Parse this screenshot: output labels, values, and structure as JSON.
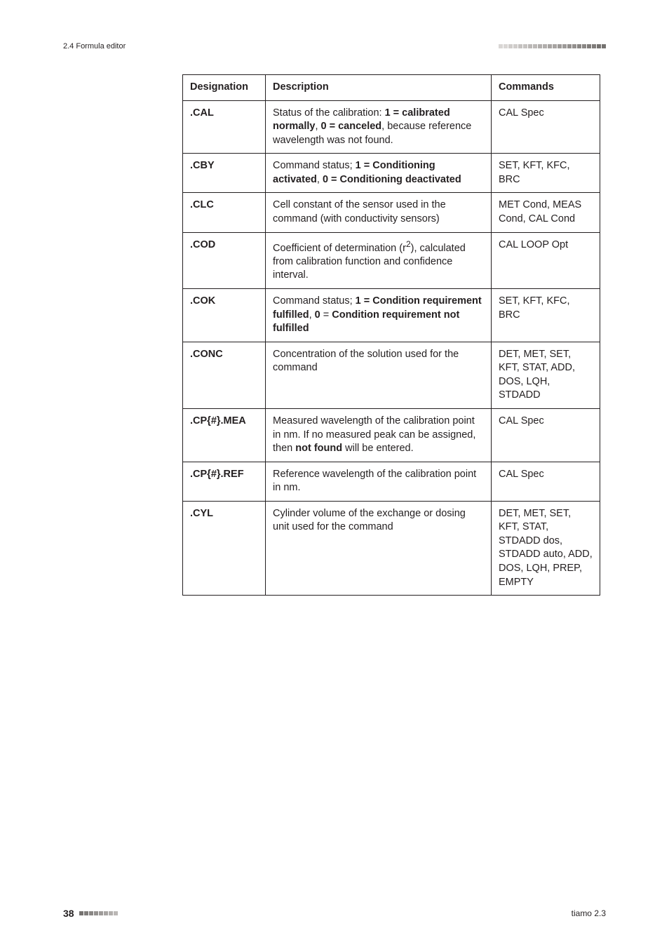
{
  "header": {
    "left": "2.4 Formula editor"
  },
  "table": {
    "headers": [
      "Designation",
      "Description",
      "Commands"
    ],
    "rows": [
      {
        "designation": ".CAL",
        "description_parts": [
          {
            "t": "Status of the calibration: ",
            "b": false
          },
          {
            "t": "1 = calibrated normally",
            "b": true
          },
          {
            "t": ", ",
            "b": false
          },
          {
            "t": "0 = canceled",
            "b": true
          },
          {
            "t": ", because reference wavelength was not found.",
            "b": false
          }
        ],
        "commands": "CAL Spec"
      },
      {
        "designation": ".CBY",
        "description_parts": [
          {
            "t": "Command status; ",
            "b": false
          },
          {
            "t": "1 = Conditioning activated",
            "b": true
          },
          {
            "t": ", ",
            "b": false
          },
          {
            "t": "0 = Conditioning deactivated",
            "b": true
          }
        ],
        "commands": "SET, KFT, KFC, BRC"
      },
      {
        "designation": ".CLC",
        "description_parts": [
          {
            "t": "Cell constant of the sensor used in the command (with conductivity sensors)",
            "b": false
          }
        ],
        "commands": "MET Cond, MEAS Cond, CAL Cond"
      },
      {
        "designation": ".COD",
        "description_parts": [
          {
            "t": "Coefficient of determination (r"
          },
          {
            "t": "2",
            "sup": true
          },
          {
            "t": "), calculated from calibration function and confidence interval."
          }
        ],
        "commands": "CAL LOOP Opt"
      },
      {
        "designation": ".COK",
        "description_parts": [
          {
            "t": "Command status; ",
            "b": false
          },
          {
            "t": "1 = Condition requirement fulfilled",
            "b": true
          },
          {
            "t": ", ",
            "b": false
          },
          {
            "t": "0",
            "b": true
          },
          {
            "t": " = ",
            "b": false
          },
          {
            "t": "Condition requirement not fulfilled",
            "b": true
          }
        ],
        "commands": "SET, KFT, KFC, BRC"
      },
      {
        "designation": ".CONC",
        "description_parts": [
          {
            "t": "Concentration of the solution used for the command",
            "b": false
          }
        ],
        "commands": "DET, MET, SET, KFT, STAT, ADD, DOS, LQH, STDADD"
      },
      {
        "designation": ".CP{#}.MEA",
        "description_parts": [
          {
            "t": "Measured wavelength of the calibration point in nm. If no measured peak can be assigned, then ",
            "b": false
          },
          {
            "t": "not found",
            "b": true
          },
          {
            "t": " will be entered.",
            "b": false
          }
        ],
        "commands": "CAL Spec"
      },
      {
        "designation": ".CP{#}.REF",
        "description_parts": [
          {
            "t": "Reference wavelength of the calibration point in nm.",
            "b": false
          }
        ],
        "commands": "CAL Spec"
      },
      {
        "designation": ".CYL",
        "description_parts": [
          {
            "t": "Cylinder volume of the exchange or dosing unit used for the command",
            "b": false
          }
        ],
        "commands": "DET, MET, SET, KFT, STAT, STDADD dos, STDADD auto, ADD, DOS, LQH, PREP, EMPTY"
      }
    ]
  },
  "footer": {
    "page": "38",
    "right": "tiamo 2.3"
  },
  "decor": {
    "header_squares": {
      "count": 22,
      "colors": [
        "#d9d6d4",
        "#d9d6d4",
        "#cfccca",
        "#cfccca",
        "#c5c2c0",
        "#c5c2c0",
        "#bbb8b6",
        "#bbb8b6",
        "#b1aeac",
        "#b1aeac",
        "#a7a4a2",
        "#a7a4a2",
        "#9d9a98",
        "#9d9a98",
        "#93908e",
        "#93908e",
        "#898684",
        "#898684",
        "#7f7c7a",
        "#7f7c7a",
        "#757270",
        "#757270"
      ]
    },
    "footer_squares": {
      "count": 8,
      "colors": [
        "#757270",
        "#7f7c7a",
        "#898684",
        "#93908e",
        "#9d9a98",
        "#a7a4a2",
        "#b1aeac",
        "#bbb8b6"
      ]
    }
  }
}
